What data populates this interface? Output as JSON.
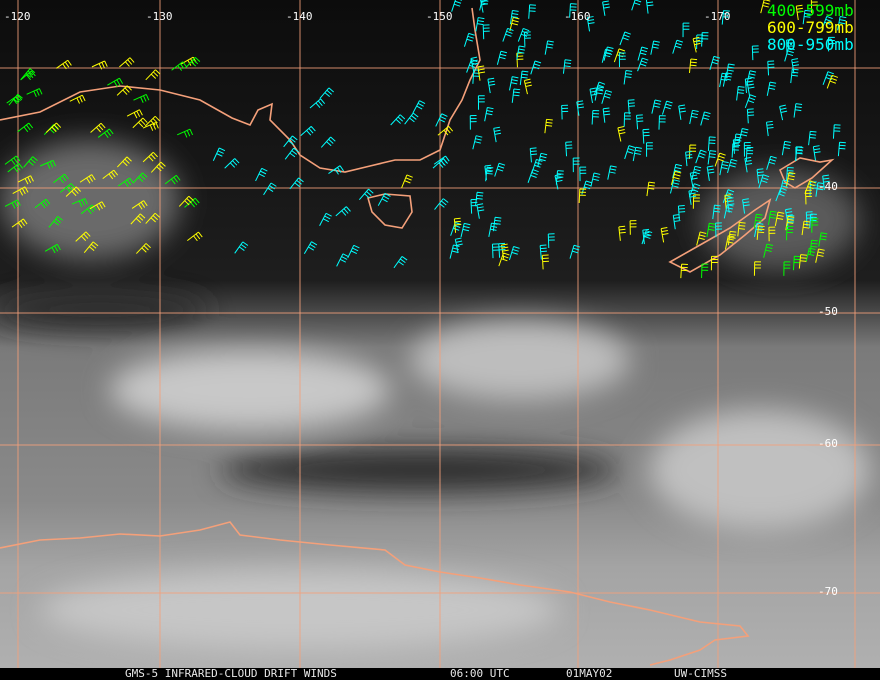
{
  "longitude_labels": [
    "-120",
    "-130",
    "-140",
    "-150",
    "-160",
    "-170"
  ],
  "latitude_labels": [
    "-40",
    "-50",
    "-60",
    "-70"
  ],
  "legend": [
    {
      "label": "400-599mb",
      "color": "#00ff00"
    },
    {
      "label": "600-799mb",
      "color": "#ffff00"
    },
    {
      "label": "800-950mb",
      "color": "#00ffff"
    }
  ],
  "footer": {
    "source": "GMS-5 INFRARED-CLOUD DRIFT WINDS",
    "time": "06:00 UTC",
    "date": "01MAY02",
    "credit": "UW-CIMSS"
  }
}
